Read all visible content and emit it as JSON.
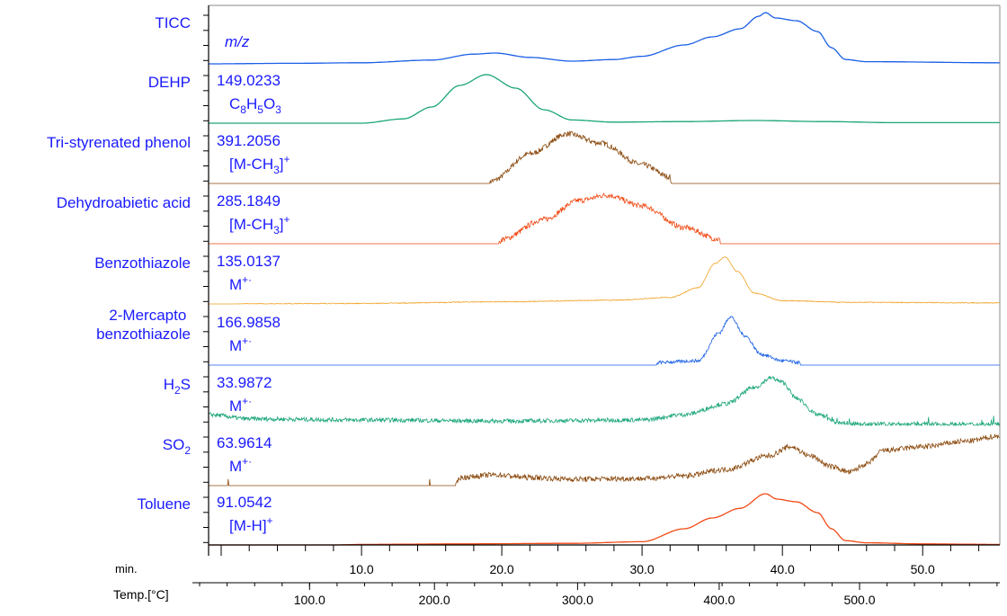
{
  "chart_data": {
    "type": "line",
    "title": "",
    "x_axis": {
      "label": "min.",
      "range": [
        -0.9,
        55.5
      ],
      "ticks": [
        10.0,
        20.0,
        30.0,
        40.0,
        50.0
      ],
      "tick_labels": [
        "10.0",
        "20.0",
        "30.0",
        "40.0",
        "50.0"
      ]
    },
    "temp_axis": {
      "label": "Temp.[°C]",
      "ticks": [
        100.0,
        200.0,
        300.0,
        400.0,
        500.0
      ],
      "tick_labels": [
        "100.0",
        "200.0",
        "300.0",
        "400.0",
        "500.0"
      ],
      "tick_min_positions": [
        6.3,
        15.2,
        25.4,
        35.5,
        45.5
      ]
    },
    "y_units": "relative intensity (per-trace normalized)",
    "series": [
      {
        "name": "TICC",
        "mz": "m/z",
        "ion": "",
        "color": "#1a5fe6",
        "noise": 0,
        "points": [
          [
            -0.9,
            0
          ],
          [
            5,
            0.01
          ],
          [
            10,
            0.02
          ],
          [
            15,
            0.07
          ],
          [
            18,
            0.18
          ],
          [
            19.5,
            0.2
          ],
          [
            22,
            0.12
          ],
          [
            25,
            0.05
          ],
          [
            28,
            0.08
          ],
          [
            30,
            0.14
          ],
          [
            33,
            0.35
          ],
          [
            35,
            0.5
          ],
          [
            37,
            0.65
          ],
          [
            38.3,
            0.88
          ],
          [
            38.8,
            0.95
          ],
          [
            39.5,
            0.85
          ],
          [
            41,
            0.8
          ],
          [
            42.5,
            0.6
          ],
          [
            43.5,
            0.3
          ],
          [
            44.5,
            0.08
          ],
          [
            46,
            0.04
          ],
          [
            55.5,
            0.02
          ]
        ]
      },
      {
        "name": "DEHP",
        "mz": "149.0233",
        "ion": "C8H5O3",
        "color": "#1aa57a",
        "noise": 0,
        "points": [
          [
            -0.9,
            0
          ],
          [
            10,
            0
          ],
          [
            13,
            0.08
          ],
          [
            15,
            0.3
          ],
          [
            17,
            0.7
          ],
          [
            18.9,
            0.9
          ],
          [
            21,
            0.65
          ],
          [
            23,
            0.25
          ],
          [
            25,
            0.06
          ],
          [
            28,
            0.02
          ],
          [
            33,
            0.03
          ],
          [
            38,
            0.05
          ],
          [
            43,
            0.03
          ],
          [
            48,
            0.01
          ],
          [
            55.5,
            0.01
          ]
        ]
      },
      {
        "name": "Tri-styrenated phenol",
        "mz": "391.2056",
        "ion": "[M-CH3]+",
        "color": "#8b4a0e",
        "noise": 0.05,
        "points": [
          [
            -0.9,
            0
          ],
          [
            19.1,
            0
          ],
          [
            19.3,
            0.05
          ],
          [
            22,
            0.55
          ],
          [
            24.7,
            0.92
          ],
          [
            27,
            0.75
          ],
          [
            30,
            0.35
          ],
          [
            32,
            0.12
          ],
          [
            32.1,
            0
          ],
          [
            55.5,
            0
          ]
        ]
      },
      {
        "name": "Dehydroabietic acid",
        "mz": "285.1849",
        "ion": "[M-CH3]+",
        "color": "#f04a14",
        "noise": 0.05,
        "points": [
          [
            -0.9,
            0
          ],
          [
            19.8,
            0
          ],
          [
            20,
            0.08
          ],
          [
            23,
            0.45
          ],
          [
            25.5,
            0.8
          ],
          [
            27.5,
            0.9
          ],
          [
            30,
            0.7
          ],
          [
            33,
            0.3
          ],
          [
            35.5,
            0.08
          ],
          [
            35.6,
            0
          ],
          [
            55.5,
            0
          ]
        ]
      },
      {
        "name": "Benzothiazole",
        "mz": "135.0137",
        "ion": "M+·",
        "color": "#f0a020",
        "noise": 0.008,
        "points": [
          [
            -0.9,
            0
          ],
          [
            10,
            0.01
          ],
          [
            20,
            0.04
          ],
          [
            28,
            0.07
          ],
          [
            32,
            0.12
          ],
          [
            34,
            0.3
          ],
          [
            35.2,
            0.75
          ],
          [
            35.9,
            0.87
          ],
          [
            36.8,
            0.6
          ],
          [
            38,
            0.2
          ],
          [
            40,
            0.06
          ],
          [
            45,
            0.03
          ],
          [
            55.5,
            0.02
          ]
        ]
      },
      {
        "name": "2-Mercapto benzothiazole",
        "mz": "166.9858",
        "ion": "M+·",
        "color": "#1a5fe6",
        "noise": 0.03,
        "points": [
          [
            -0.9,
            0
          ],
          [
            31,
            0
          ],
          [
            31.2,
            0.05
          ],
          [
            34,
            0.08
          ],
          [
            35.5,
            0.6
          ],
          [
            36.3,
            0.9
          ],
          [
            37.3,
            0.55
          ],
          [
            38.5,
            0.2
          ],
          [
            40,
            0.08
          ],
          [
            41.2,
            0.05
          ],
          [
            41.3,
            0
          ],
          [
            55.5,
            0
          ]
        ]
      },
      {
        "name": "H2S",
        "mz": "33.9872",
        "ion": "M+·",
        "color": "#1aa57a",
        "noise": 0.04,
        "points": [
          [
            -0.9,
            0.2
          ],
          [
            2,
            0.12
          ],
          [
            10,
            0.1
          ],
          [
            20,
            0.08
          ],
          [
            30,
            0.1
          ],
          [
            33,
            0.2
          ],
          [
            36,
            0.4
          ],
          [
            38,
            0.7
          ],
          [
            39.2,
            0.88
          ],
          [
            40,
            0.8
          ],
          [
            41,
            0.5
          ],
          [
            42.5,
            0.2
          ],
          [
            44,
            0.05
          ],
          [
            46,
            0.02
          ],
          [
            55.5,
            0.02
          ]
        ]
      },
      {
        "name": "SO2",
        "mz": "63.9614",
        "ion": "M+·",
        "color": "#8b4a0e",
        "noise": 0.05,
        "points": [
          [
            -0.9,
            0
          ],
          [
            16.7,
            0
          ],
          [
            17,
            0.15
          ],
          [
            19.5,
            0.2
          ],
          [
            22,
            0.15
          ],
          [
            25,
            0.12
          ],
          [
            30,
            0.13
          ],
          [
            33,
            0.18
          ],
          [
            36,
            0.3
          ],
          [
            39,
            0.55
          ],
          [
            40.6,
            0.72
          ],
          [
            42,
            0.55
          ],
          [
            43.5,
            0.35
          ],
          [
            44.8,
            0.25
          ],
          [
            46,
            0.4
          ],
          [
            47.2,
            0.65
          ],
          [
            50,
            0.72
          ],
          [
            53,
            0.82
          ],
          [
            55.5,
            0.92
          ]
        ]
      },
      {
        "name": "Toluene",
        "mz": "91.0542",
        "ion": "[M-H]+",
        "color": "#f04a14",
        "noise": 0,
        "points": [
          [
            -0.9,
            0
          ],
          [
            8,
            0
          ],
          [
            10,
            0.01
          ],
          [
            17,
            0.02
          ],
          [
            25,
            0.03
          ],
          [
            30,
            0.06
          ],
          [
            33,
            0.3
          ],
          [
            35,
            0.5
          ],
          [
            37,
            0.68
          ],
          [
            38.8,
            0.95
          ],
          [
            39.6,
            0.85
          ],
          [
            41,
            0.8
          ],
          [
            42.5,
            0.6
          ],
          [
            43.5,
            0.3
          ],
          [
            44.5,
            0.08
          ],
          [
            46,
            0.04
          ],
          [
            50,
            0.02
          ],
          [
            55.5,
            0.01
          ]
        ]
      }
    ]
  }
}
